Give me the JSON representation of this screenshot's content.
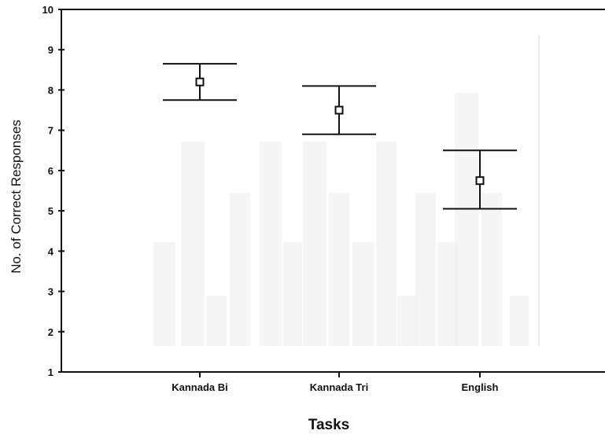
{
  "chart_data": {
    "type": "scatter",
    "subtype": "error-bar (mean with interval)",
    "title": "",
    "xlabel": "Tasks",
    "ylabel": "No. of Correct Responses",
    "ylim": [
      1,
      10
    ],
    "yticks": [
      "1",
      "2",
      "3",
      "4",
      "5",
      "6",
      "7",
      "8",
      "9",
      "10"
    ],
    "categories": [
      "Kannada Bi",
      "Kannada Tri",
      "English"
    ],
    "series": [
      {
        "mean": [
          8.2,
          7.5,
          5.75
        ],
        "lower": [
          7.75,
          6.9,
          5.05
        ],
        "upper": [
          8.65,
          8.1,
          6.5
        ]
      }
    ],
    "grid": false,
    "legend": "none",
    "colors": {
      "axis": "#111111",
      "marker": "#111111",
      "background": "#ffffff",
      "watermark": "#ececec"
    }
  }
}
